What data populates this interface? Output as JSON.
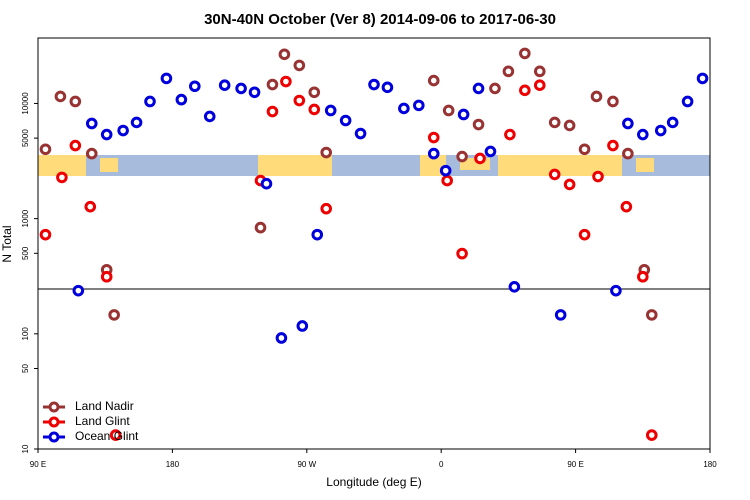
{
  "chart_data": {
    "type": "scatter",
    "title": "30N-40N October (Ver 8)   2014-09-06 to 2017-06-30",
    "x_label": "Longitude (deg E)",
    "y_label": "N Total",
    "log_y": true,
    "xlim": [
      90,
      540
    ],
    "xticks": [
      {
        "value": 90,
        "label": "90 E"
      },
      {
        "value": 180,
        "label": "180"
      },
      {
        "value": 270,
        "label": "90 W"
      },
      {
        "value": 360,
        "label": "0"
      },
      {
        "value": 450,
        "label": "90 E"
      },
      {
        "value": 540,
        "label": "180"
      }
    ],
    "ylim": [
      10,
      37000
    ],
    "yticks": [
      10,
      50,
      100,
      500,
      1000,
      5000,
      10000
    ],
    "reference_line": 245,
    "legend": "lower left",
    "series": [
      {
        "name": "Land Nadir",
        "color": "#993333",
        "x": [
          95,
          105,
          115,
          126,
          136,
          141,
          239,
          247,
          255,
          265,
          275,
          283,
          355,
          365,
          374,
          385,
          396,
          405,
          416,
          426,
          436,
          446,
          456,
          464,
          475,
          485,
          496,
          501
        ],
        "values": [
          4000,
          11500,
          10400,
          3670,
          360,
          146,
          836,
          14600,
          26700,
          21400,
          12500,
          3750,
          15800,
          8690,
          3460,
          6560,
          13500,
          19000,
          27200,
          19000,
          6840,
          6440,
          4000,
          11500,
          10400,
          3670,
          360,
          146
        ]
      },
      {
        "name": "Land Glint",
        "color": "#ee0000",
        "x": [
          95,
          106,
          115,
          125,
          136,
          142,
          239,
          247,
          256,
          265,
          275,
          283,
          355,
          364,
          374,
          386,
          406,
          416,
          426,
          436,
          446,
          456,
          465,
          475,
          484,
          495,
          501
        ],
        "values": [
          726,
          2280,
          4310,
          1270,
          313,
          13.2,
          2140,
          8510,
          15500,
          10600,
          8870,
          1220,
          5060,
          2140,
          497,
          3330,
          5370,
          13000,
          14400,
          2420,
          1980,
          726,
          2320,
          4310,
          1270,
          313,
          13.2
        ]
      },
      {
        "name": "Ocean Glint",
        "color": "#0000dd",
        "x": [
          117,
          126,
          136,
          147,
          156,
          165,
          176,
          186,
          195,
          205,
          215,
          226,
          235,
          243,
          253,
          267,
          277,
          286,
          296,
          306,
          315,
          324,
          335,
          345,
          355,
          363,
          375,
          385,
          393,
          409,
          440,
          477,
          485,
          495,
          507,
          515,
          525,
          535
        ],
        "values": [
          237,
          6700,
          5370,
          5820,
          6840,
          10400,
          16500,
          10800,
          14100,
          7710,
          14400,
          13500,
          12500,
          2010,
          92,
          117,
          726,
          8690,
          7110,
          5480,
          14600,
          13800,
          9050,
          9620,
          3670,
          2610,
          8020,
          13500,
          3830,
          256,
          146,
          237,
          6700,
          5370,
          5820,
          6840,
          10400,
          16500
        ]
      }
    ]
  }
}
